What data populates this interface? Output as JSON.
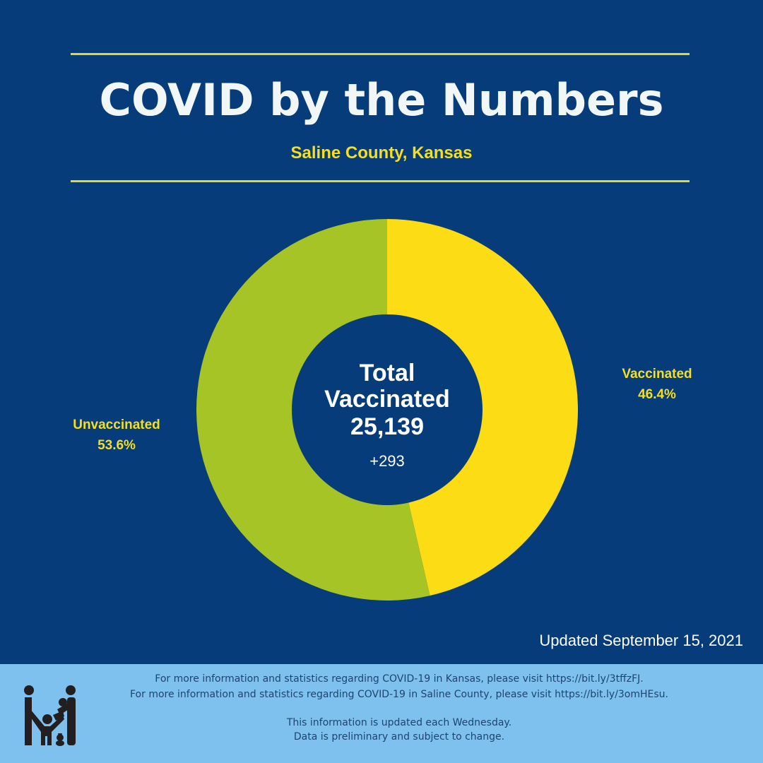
{
  "header": {
    "title": "COVID by the Numbers",
    "subtitle": "Saline County, Kansas"
  },
  "colors": {
    "background": "#063c79",
    "accent_yellow": "#f7df1c",
    "rule": "#e8d531",
    "vaccinated": "#fcdc15",
    "unvaccinated": "#a7c427",
    "footer_bg": "#7fc1ee",
    "footer_text": "#1d4470"
  },
  "chart_data": {
    "type": "pie",
    "variant": "donut",
    "title": "Total Vaccinated",
    "categories": [
      "Vaccinated",
      "Unvaccinated"
    ],
    "values": [
      46.4,
      53.6
    ],
    "unit": "%",
    "start": "12 o'clock, clockwise",
    "labels": [
      {
        "name": "Vaccinated",
        "value_text": "46.4%"
      },
      {
        "name": "Unvaccinated",
        "value_text": "53.6%"
      }
    ],
    "center": {
      "line1": "Total",
      "line2": "Vaccinated",
      "total": "25,139",
      "delta": "+293"
    }
  },
  "updated": "Updated September 15, 2021",
  "footer": {
    "line1": "For more information and statistics regarding COVID-19 in Kansas, please visit https://bit.ly/3tffzFJ.",
    "line2": "For more information and statistics regarding COVID-19 in Saline County, please visit  https://bit.ly/3omHEsu.",
    "line3": "This information is updated each Wednesday.",
    "line4": "Data is preliminary and subject to change.",
    "logo_icon": "family-icon"
  }
}
